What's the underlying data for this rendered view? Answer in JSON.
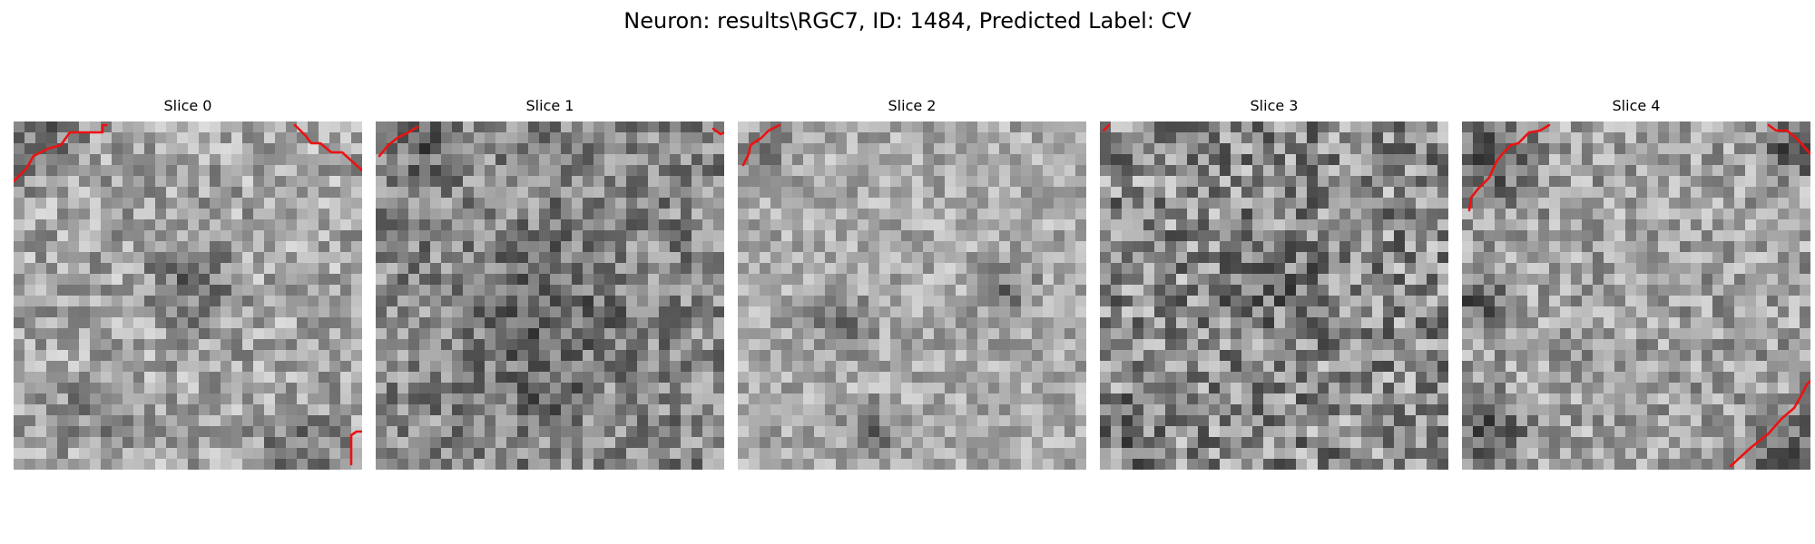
{
  "figure": {
    "title": "Neuron: results\\RGC7, ID: 1484, Predicted Label: CV"
  },
  "slices": [
    {
      "title": "Slice 0"
    },
    {
      "title": "Slice 1"
    },
    {
      "title": "Slice 2"
    },
    {
      "title": "Slice 3"
    },
    {
      "title": "Slice 4"
    }
  ],
  "colors": {
    "contour": "#ee1111",
    "colormap": "gray"
  }
}
